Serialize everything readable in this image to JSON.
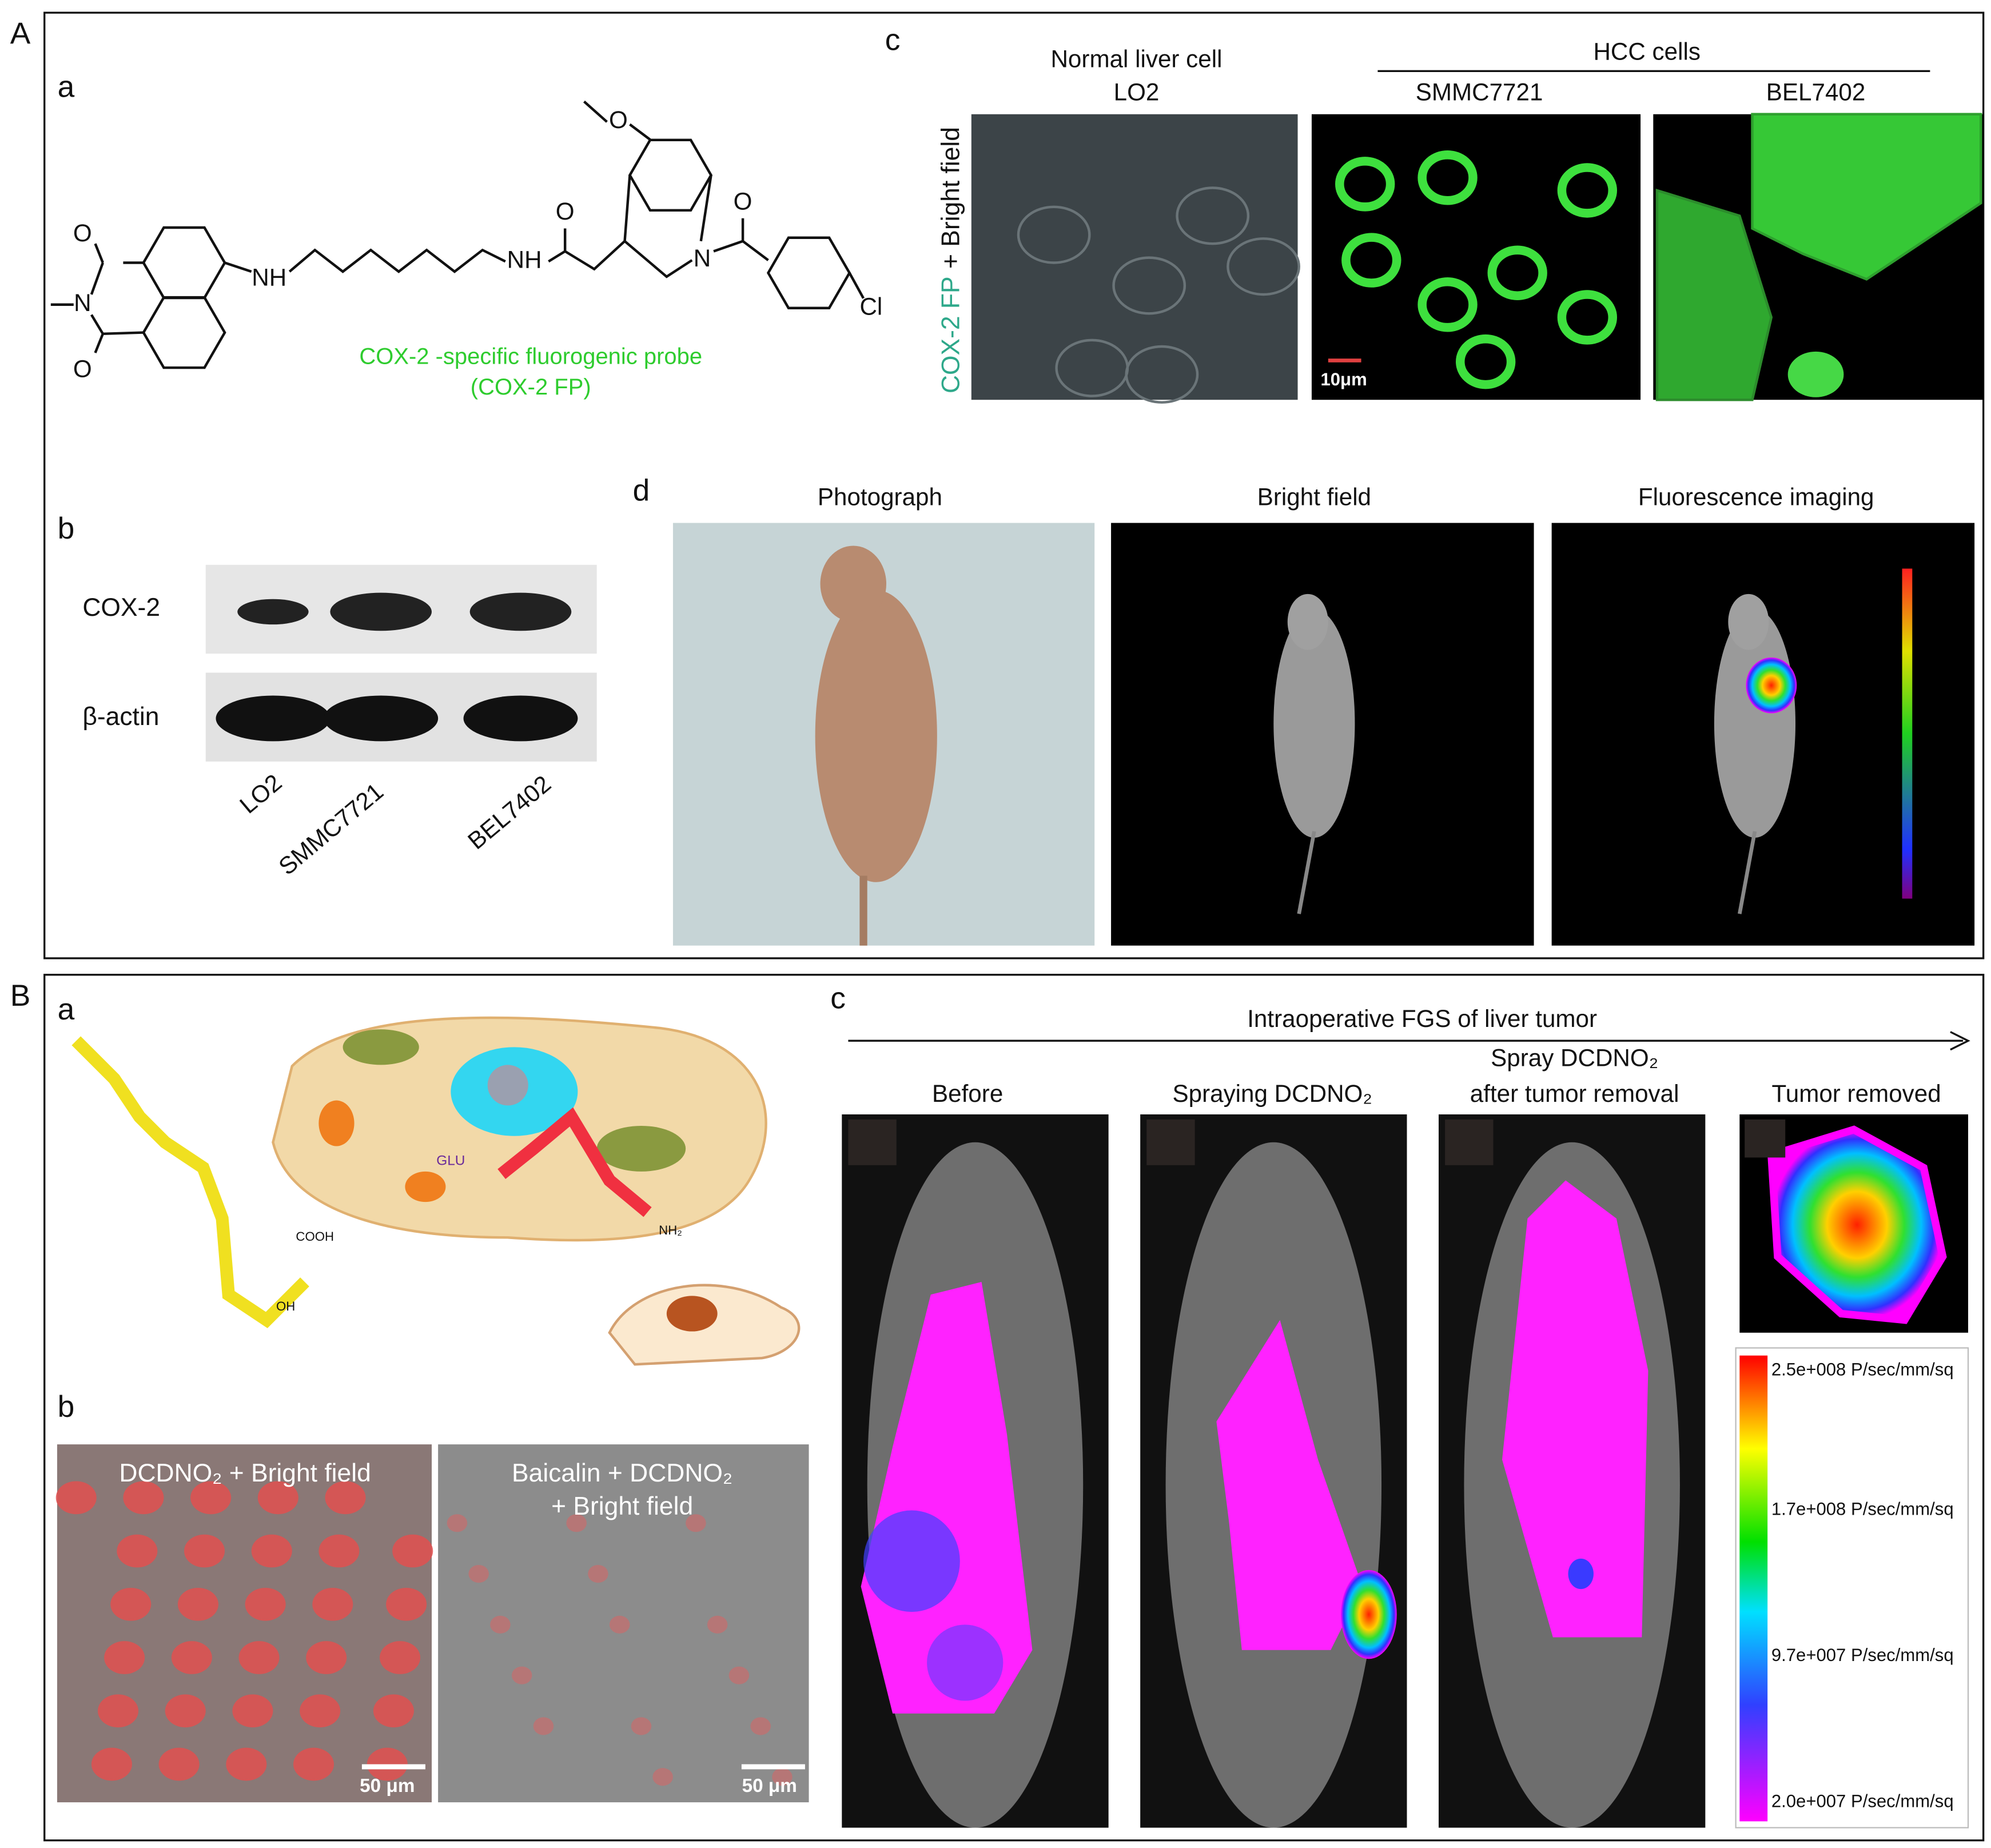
{
  "panel_A": {
    "label": "A",
    "a": {
      "label": "a",
      "atoms": [
        "O",
        "N",
        "O",
        "NH",
        "NH",
        "O",
        "O",
        "N",
        "O",
        "Cl"
      ],
      "probe_name": "COX-2 -specific fluorogenic probe",
      "probe_abbr": "(COX-2 FP)"
    },
    "b": {
      "label": "b",
      "rows": [
        "COX-2",
        "β-actin"
      ],
      "lanes": [
        "LO2",
        "SMMC7721",
        "BEL7402"
      ]
    },
    "c": {
      "label": "c",
      "normal_header": "Normal liver cell",
      "normal_line": "LO2",
      "hcc_header": "HCC cells",
      "hcc_lines": [
        "SMMC7721",
        "BEL7402"
      ],
      "side_label_colored": "COX-2 FP",
      "side_label_plain": "+ Bright field",
      "scale_bar": "10μm"
    },
    "d": {
      "label": "d",
      "headers": [
        "Photograph",
        "Bright field",
        "Fluorescence imaging"
      ]
    }
  },
  "panel_B": {
    "label": "B",
    "a": {
      "label": "a",
      "diagram_texts": [
        "GLU",
        "COOH",
        "OH",
        "NH₂"
      ]
    },
    "b": {
      "label": "b",
      "left_caption": "DCDNO₂ + Bright field",
      "right_caption": [
        "Baicalin + DCDNO₂",
        "+ Bright field"
      ],
      "scale_bars": [
        "50 μm",
        "50 μm"
      ]
    },
    "c": {
      "label": "c",
      "arrow_title": "Intraoperative FGS of liver tumor",
      "headers": [
        "Before",
        "Spraying DCDNO₂",
        "Spray DCDNO₂",
        "after tumor removal",
        "Tumor removed"
      ],
      "colorbar_labels": [
        "2.5e+008 P/sec/mm/sq",
        "1.7e+008 P/sec/mm/sq",
        "9.7e+007 P/sec/mm/sq",
        "2.0e+007 P/sec/mm/sq"
      ]
    }
  }
}
